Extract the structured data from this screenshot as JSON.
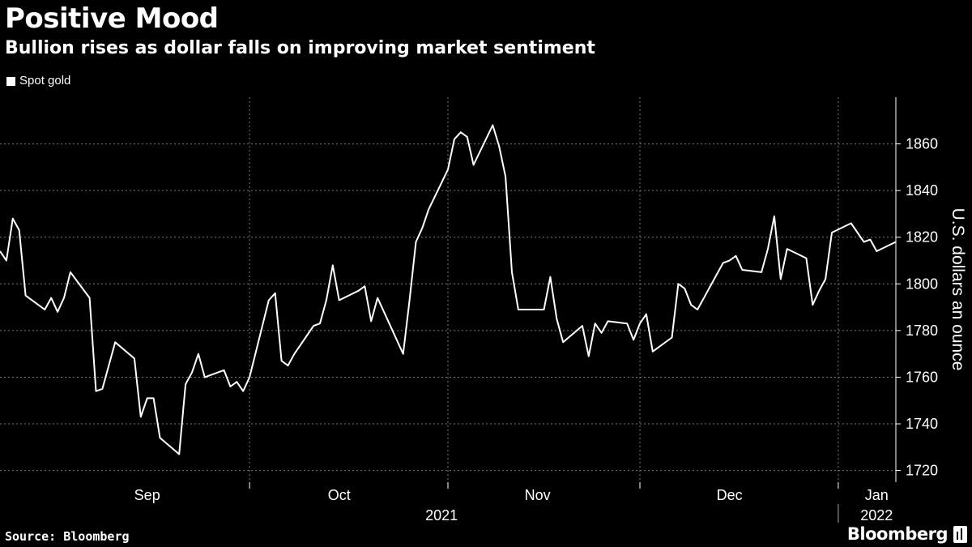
{
  "header": {
    "title": "Positive Mood",
    "subtitle": "Bullion rises as dollar falls on improving market sentiment"
  },
  "footer": {
    "source": "Source: Bloomberg",
    "brand": "Bloomberg"
  },
  "colors": {
    "background": "#000000",
    "line": "#ffffff",
    "grid": "#7a7a7a"
  },
  "chart_data": {
    "type": "line",
    "title": "Positive Mood",
    "subtitle": "Bullion rises as dollar falls on improving market sentiment",
    "ylabel": "U.S. dollars an ounce",
    "ylim": [
      1715,
      1880
    ],
    "y_ticks": [
      1720,
      1740,
      1760,
      1780,
      1800,
      1820,
      1840,
      1860
    ],
    "y_axis_position": "right",
    "grid": true,
    "legend_position": "top-left",
    "x_range": [
      "2021-08-23",
      "2022-01-10"
    ],
    "month_labels": [
      {
        "label": "Sep",
        "date": "2021-09-15"
      },
      {
        "label": "Oct",
        "date": "2021-10-15"
      },
      {
        "label": "Nov",
        "date": "2021-11-15"
      },
      {
        "label": "Dec",
        "date": "2021-12-15"
      },
      {
        "label": "Jan",
        "date": "2022-01-07"
      }
    ],
    "month_gridlines": [
      "2021-10-01",
      "2021-11-01",
      "2021-12-01",
      "2022-01-01"
    ],
    "year_labels": [
      {
        "label": "2021",
        "date": "2021-10-31"
      },
      {
        "label": "2022",
        "date": "2022-01-07"
      }
    ],
    "year_divider": "2022-01-01",
    "series": [
      {
        "name": "Spot gold",
        "x": [
          "2021-08-23",
          "2021-08-24",
          "2021-08-25",
          "2021-08-26",
          "2021-08-27",
          "2021-08-30",
          "2021-08-31",
          "2021-09-01",
          "2021-09-02",
          "2021-09-03",
          "2021-09-06",
          "2021-09-07",
          "2021-09-08",
          "2021-09-09",
          "2021-09-10",
          "2021-09-13",
          "2021-09-14",
          "2021-09-15",
          "2021-09-16",
          "2021-09-17",
          "2021-09-20",
          "2021-09-21",
          "2021-09-22",
          "2021-09-23",
          "2021-09-24",
          "2021-09-27",
          "2021-09-28",
          "2021-09-29",
          "2021-09-30",
          "2021-10-01",
          "2021-10-04",
          "2021-10-05",
          "2021-10-06",
          "2021-10-07",
          "2021-10-08",
          "2021-10-11",
          "2021-10-12",
          "2021-10-13",
          "2021-10-14",
          "2021-10-15",
          "2021-10-18",
          "2021-10-19",
          "2021-10-20",
          "2021-10-21",
          "2021-10-22",
          "2021-10-25",
          "2021-10-26",
          "2021-10-27",
          "2021-10-28",
          "2021-10-29",
          "2021-11-01",
          "2021-11-02",
          "2021-11-03",
          "2021-11-04",
          "2021-11-05",
          "2021-11-08",
          "2021-11-09",
          "2021-11-10",
          "2021-11-11",
          "2021-11-12",
          "2021-11-15",
          "2021-11-16",
          "2021-11-17",
          "2021-11-18",
          "2021-11-19",
          "2021-11-22",
          "2021-11-23",
          "2021-11-24",
          "2021-11-25",
          "2021-11-26",
          "2021-11-29",
          "2021-11-30",
          "2021-12-01",
          "2021-12-02",
          "2021-12-03",
          "2021-12-06",
          "2021-12-07",
          "2021-12-08",
          "2021-12-09",
          "2021-12-10",
          "2021-12-13",
          "2021-12-14",
          "2021-12-15",
          "2021-12-16",
          "2021-12-17",
          "2021-12-20",
          "2021-12-21",
          "2021-12-22",
          "2021-12-23",
          "2021-12-24",
          "2021-12-27",
          "2021-12-28",
          "2021-12-29",
          "2021-12-30",
          "2021-12-31",
          "2022-01-03",
          "2022-01-04",
          "2022-01-05",
          "2022-01-06",
          "2022-01-07",
          "2022-01-10"
        ],
        "values": [
          1814,
          1810,
          1828,
          1823,
          1795,
          1789,
          1794,
          1788,
          1794,
          1805,
          1794,
          1754,
          1755,
          1765,
          1775,
          1768,
          1743,
          1751,
          1751,
          1734,
          1727,
          1757,
          1762,
          1770,
          1760,
          1763,
          1756,
          1758,
          1754,
          1760,
          1793,
          1796,
          1767,
          1765,
          1770,
          1782,
          1783,
          1793,
          1808,
          1793,
          1797,
          1799,
          1784,
          1794,
          1788,
          1770,
          1793,
          1818,
          1824,
          1832,
          1849,
          1862,
          1865,
          1863,
          1851,
          1868,
          1859,
          1846,
          1805,
          1789,
          1789,
          1789,
          1803,
          1785,
          1775,
          1782,
          1769,
          1783,
          1779,
          1784,
          1783,
          1776,
          1783,
          1787,
          1771,
          1777,
          1800,
          1798,
          1791,
          1789,
          1804,
          1809,
          1810,
          1812,
          1806,
          1805,
          1815,
          1829,
          1802,
          1815,
          1811,
          1791,
          1797,
          1802,
          1822,
          1826,
          1822,
          1818,
          1819,
          1814,
          1818
        ]
      }
    ]
  }
}
